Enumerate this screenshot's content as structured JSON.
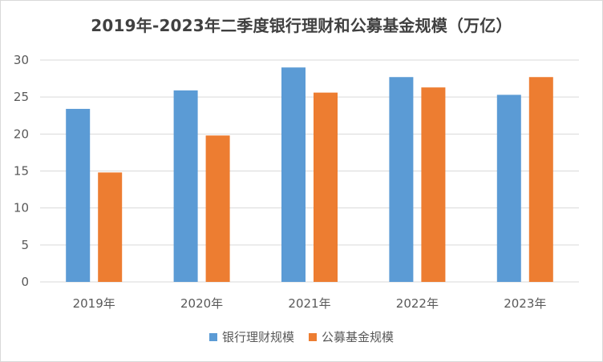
{
  "chart_data": {
    "type": "bar",
    "title": "2019年-2023年二季度银行理财和公募基金规模（万亿）",
    "xlabel": "",
    "ylabel": "",
    "categories": [
      "2019年",
      "2020年",
      "2021年",
      "2022年",
      "2023年"
    ],
    "ylim": [
      0,
      30
    ],
    "yticks": [
      0,
      5,
      10,
      15,
      20,
      25,
      30
    ],
    "grid": true,
    "legend_position": "bottom",
    "series": [
      {
        "name": "银行理财规模",
        "color": "#5b9bd5",
        "values": [
          23.4,
          25.9,
          29.0,
          27.7,
          25.3
        ]
      },
      {
        "name": "公募基金规模",
        "color": "#ed7d31",
        "values": [
          14.8,
          19.8,
          25.6,
          26.3,
          27.7
        ]
      }
    ],
    "gridline_color": "#d9d9d9",
    "text_color": "#595959"
  }
}
